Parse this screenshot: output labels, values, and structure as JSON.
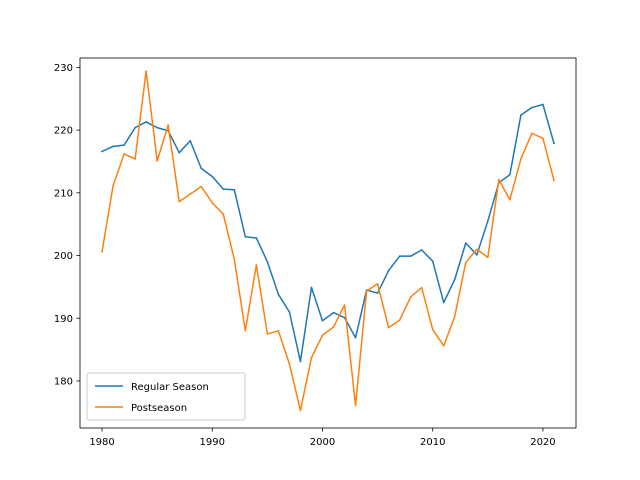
{
  "chart_data": {
    "type": "line",
    "title": "",
    "xlabel": "",
    "ylabel": "",
    "xlim": [
      1978.0,
      2023.0
    ],
    "ylim": [
      172.5,
      231.5
    ],
    "xticks": [
      1980,
      1990,
      2000,
      2010,
      2020
    ],
    "yticks": [
      180,
      190,
      200,
      210,
      220,
      230
    ],
    "grid": false,
    "legend_location": "lower-left",
    "x": [
      1980,
      1981,
      1982,
      1983,
      1984,
      1985,
      1986,
      1987,
      1988,
      1989,
      1990,
      1991,
      1992,
      1993,
      1994,
      1995,
      1996,
      1997,
      1998,
      1999,
      2000,
      2001,
      2002,
      2003,
      2004,
      2005,
      2006,
      2007,
      2008,
      2009,
      2010,
      2011,
      2012,
      2013,
      2014,
      2015,
      2016,
      2017,
      2018,
      2019,
      2020,
      2021
    ],
    "series": [
      {
        "name": "Regular Season",
        "color": "#1f77b4",
        "values": [
          216.6,
          217.4,
          217.6,
          220.4,
          221.3,
          220.4,
          219.9,
          216.4,
          218.3,
          213.9,
          212.6,
          210.6,
          210.5,
          203.0,
          202.8,
          199.0,
          193.8,
          191.0,
          183.1,
          194.9,
          189.6,
          190.9,
          190.1,
          186.9,
          194.5,
          194.0,
          197.6,
          199.9,
          199.9,
          200.9,
          199.1,
          192.5,
          196.2,
          202.0,
          200.1,
          205.5,
          211.6,
          212.9,
          222.4,
          223.6,
          224.1,
          217.9
        ]
      },
      {
        "name": "Postseason",
        "color": "#ff7f0e",
        "values": [
          200.6,
          211.1,
          216.2,
          215.4,
          229.4,
          215.1,
          220.8,
          208.6,
          209.8,
          211.0,
          208.4,
          206.6,
          199.4,
          188.0,
          198.5,
          187.5,
          188.0,
          182.7,
          175.3,
          183.7,
          187.3,
          188.6,
          192.1,
          176.1,
          194.3,
          195.5,
          188.5,
          189.7,
          193.4,
          194.9,
          188.2,
          185.6,
          190.3,
          198.9,
          201.0,
          199.7,
          212.1,
          208.9,
          215.4,
          219.5,
          218.7,
          212.0
        ]
      }
    ]
  }
}
